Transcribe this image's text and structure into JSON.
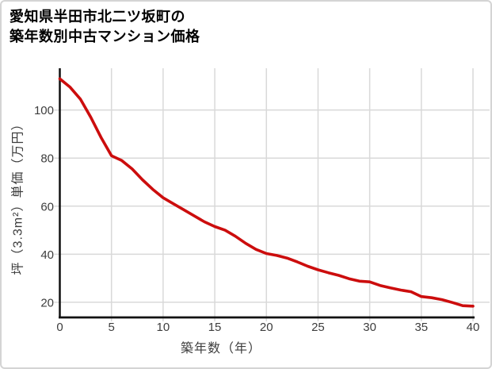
{
  "title": {
    "line1": "愛知県半田市北二ツ坂町の",
    "line2": "築年数別中古マンション価格"
  },
  "chart_data": {
    "type": "line",
    "title": "愛知県半田市北二ツ坂町の 築年数別中古マンション価格",
    "xlabel": "築年数（年）",
    "ylabel": "坪（3.3m²）単価（万円）",
    "x": [
      0,
      1,
      2,
      3,
      4,
      5,
      6,
      7,
      8,
      9,
      10,
      11,
      12,
      13,
      14,
      15,
      16,
      17,
      18,
      19,
      20,
      21,
      22,
      23,
      24,
      25,
      26,
      27,
      28,
      29,
      30,
      31,
      32,
      33,
      34,
      35,
      36,
      37,
      38,
      39,
      40
    ],
    "y": [
      113,
      109.5,
      104.5,
      97,
      88.5,
      81,
      79,
      75.5,
      71,
      67,
      63.5,
      61,
      58.5,
      56,
      53.5,
      51.5,
      50,
      47.5,
      44.5,
      42,
      40.3,
      39.5,
      38.4,
      36.8,
      35,
      33.5,
      32.3,
      31.2,
      29.8,
      28.8,
      28.5,
      27,
      26,
      25.1,
      24.4,
      22.4,
      21.9,
      21.1,
      19.9,
      18.6,
      18.4
    ],
    "xticks": [
      0,
      5,
      10,
      15,
      20,
      25,
      30,
      35,
      40
    ],
    "yticks": [
      20,
      40,
      60,
      80,
      100
    ],
    "xlim": [
      0,
      40
    ],
    "ylim": [
      13.7,
      117.4
    ],
    "grid": true,
    "legend": "none",
    "line_color": "#cc0d0d",
    "colors": {
      "grid": "#d9d9d9",
      "axis": "#111111",
      "tick_text": "#3d3d3d",
      "title_text": "#000000",
      "border": "#d4d4d4",
      "background": "#ffffff"
    }
  }
}
